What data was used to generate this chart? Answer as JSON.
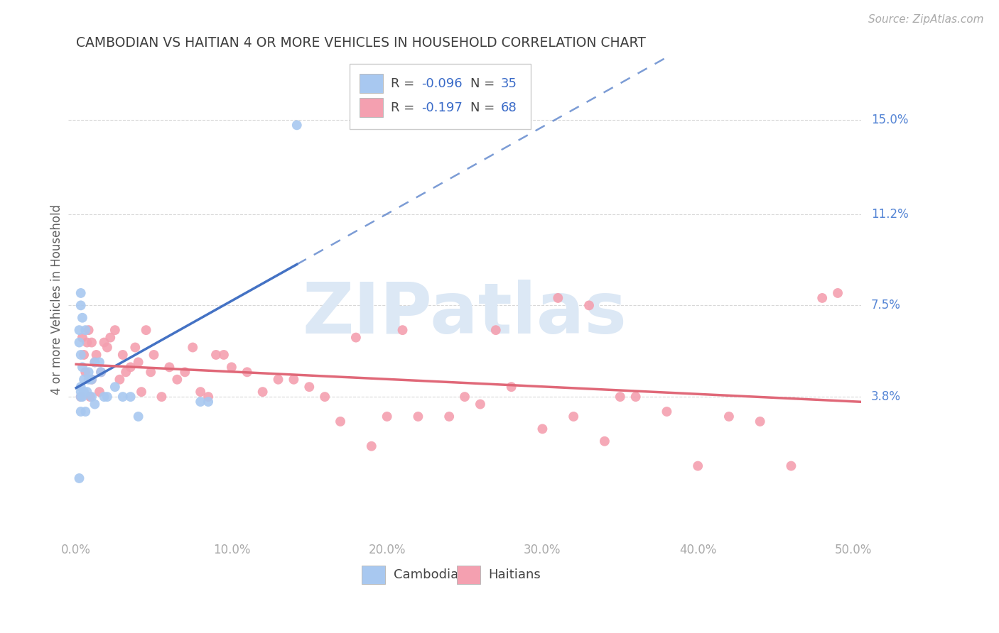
{
  "title": "CAMBODIAN VS HAITIAN 4 OR MORE VEHICLES IN HOUSEHOLD CORRELATION CHART",
  "source": "Source: ZipAtlas.com",
  "ylabel": "4 or more Vehicles in Household",
  "xlabel_ticks": [
    "0.0%",
    "10.0%",
    "20.0%",
    "30.0%",
    "40.0%",
    "50.0%"
  ],
  "xlabel_vals": [
    0.0,
    0.1,
    0.2,
    0.3,
    0.4,
    0.5
  ],
  "ytick_labels": [
    "3.8%",
    "7.5%",
    "11.2%",
    "15.0%"
  ],
  "ytick_vals": [
    0.038,
    0.075,
    0.112,
    0.15
  ],
  "xlim": [
    -0.005,
    0.505
  ],
  "ylim": [
    -0.02,
    0.175
  ],
  "watermark": "ZIPatlas",
  "scatter_cambodian_x": [
    0.002,
    0.003,
    0.003,
    0.003,
    0.003,
    0.004,
    0.004,
    0.005,
    0.005,
    0.006,
    0.007,
    0.008,
    0.008,
    0.01,
    0.01,
    0.012,
    0.012,
    0.015,
    0.016,
    0.018,
    0.02,
    0.025,
    0.03,
    0.035,
    0.04,
    0.08,
    0.085,
    0.003,
    0.002,
    0.002,
    0.003,
    0.004,
    0.006,
    0.003,
    0.142
  ],
  "scatter_cambodian_y": [
    0.065,
    0.042,
    0.038,
    0.075,
    0.08,
    0.038,
    0.07,
    0.045,
    0.04,
    0.065,
    0.04,
    0.048,
    0.045,
    0.045,
    0.038,
    0.052,
    0.035,
    0.052,
    0.048,
    0.038,
    0.038,
    0.042,
    0.038,
    0.038,
    0.03,
    0.036,
    0.036,
    0.04,
    0.005,
    0.06,
    0.055,
    0.05,
    0.032,
    0.032,
    0.148
  ],
  "scatter_haitian_x": [
    0.003,
    0.004,
    0.005,
    0.006,
    0.007,
    0.008,
    0.009,
    0.01,
    0.01,
    0.012,
    0.013,
    0.015,
    0.016,
    0.018,
    0.02,
    0.022,
    0.025,
    0.028,
    0.03,
    0.032,
    0.035,
    0.038,
    0.04,
    0.042,
    0.045,
    0.048,
    0.05,
    0.055,
    0.06,
    0.065,
    0.07,
    0.075,
    0.08,
    0.085,
    0.09,
    0.095,
    0.1,
    0.11,
    0.12,
    0.13,
    0.14,
    0.15,
    0.16,
    0.17,
    0.18,
    0.19,
    0.2,
    0.21,
    0.22,
    0.24,
    0.25,
    0.26,
    0.27,
    0.28,
    0.3,
    0.31,
    0.32,
    0.33,
    0.34,
    0.35,
    0.36,
    0.38,
    0.4,
    0.42,
    0.44,
    0.46,
    0.48,
    0.49
  ],
  "scatter_haitian_y": [
    0.038,
    0.062,
    0.055,
    0.048,
    0.06,
    0.065,
    0.038,
    0.045,
    0.06,
    0.052,
    0.055,
    0.04,
    0.048,
    0.06,
    0.058,
    0.062,
    0.065,
    0.045,
    0.055,
    0.048,
    0.05,
    0.058,
    0.052,
    0.04,
    0.065,
    0.048,
    0.055,
    0.038,
    0.05,
    0.045,
    0.048,
    0.058,
    0.04,
    0.038,
    0.055,
    0.055,
    0.05,
    0.048,
    0.04,
    0.045,
    0.045,
    0.042,
    0.038,
    0.028,
    0.062,
    0.018,
    0.03,
    0.065,
    0.03,
    0.03,
    0.038,
    0.035,
    0.065,
    0.042,
    0.025,
    0.078,
    0.03,
    0.075,
    0.02,
    0.038,
    0.038,
    0.032,
    0.01,
    0.03,
    0.028,
    0.01,
    0.078,
    0.08
  ],
  "cambodian_color": "#a8c8f0",
  "haitian_color": "#f4a0b0",
  "cambodian_line_color": "#4472c4",
  "haitian_line_color": "#e06878",
  "background_color": "#ffffff",
  "grid_color": "#d8d8d8",
  "title_color": "#404040",
  "axis_label_color": "#606060",
  "right_tick_color": "#5585d5",
  "source_color": "#aaaaaa",
  "xtick_color": "#aaaaaa",
  "watermark_color": "#dce8f5"
}
